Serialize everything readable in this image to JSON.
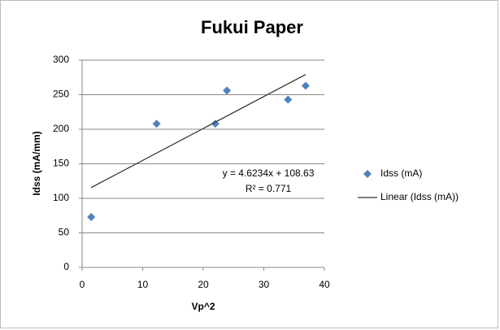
{
  "chart_data": {
    "type": "scatter",
    "title": "Fukui Paper",
    "x_label": "Vp^2",
    "y_label": "Idss (mA/mm)",
    "series": [
      {
        "name": "Idss (mA)",
        "color": "#4f81bd",
        "x": [
          1.5,
          12.3,
          22,
          23.9,
          34,
          36.9
        ],
        "values": [
          73,
          208,
          208,
          256,
          243,
          263
        ]
      }
    ],
    "trendline": {
      "name": "Linear (Idss (mA))",
      "color": "#333333",
      "slope": 4.6234,
      "intercept": 108.63,
      "equation_label": "y = 4.6234x + 108.63",
      "r2_label": "R² = 0.771"
    },
    "xlim": [
      0,
      40
    ],
    "xticks": [
      0,
      10,
      20,
      30,
      40
    ],
    "ylim": [
      0,
      300
    ],
    "yticks": [
      0,
      50,
      100,
      150,
      200,
      250,
      300
    ],
    "grid": true,
    "legend": "right"
  }
}
